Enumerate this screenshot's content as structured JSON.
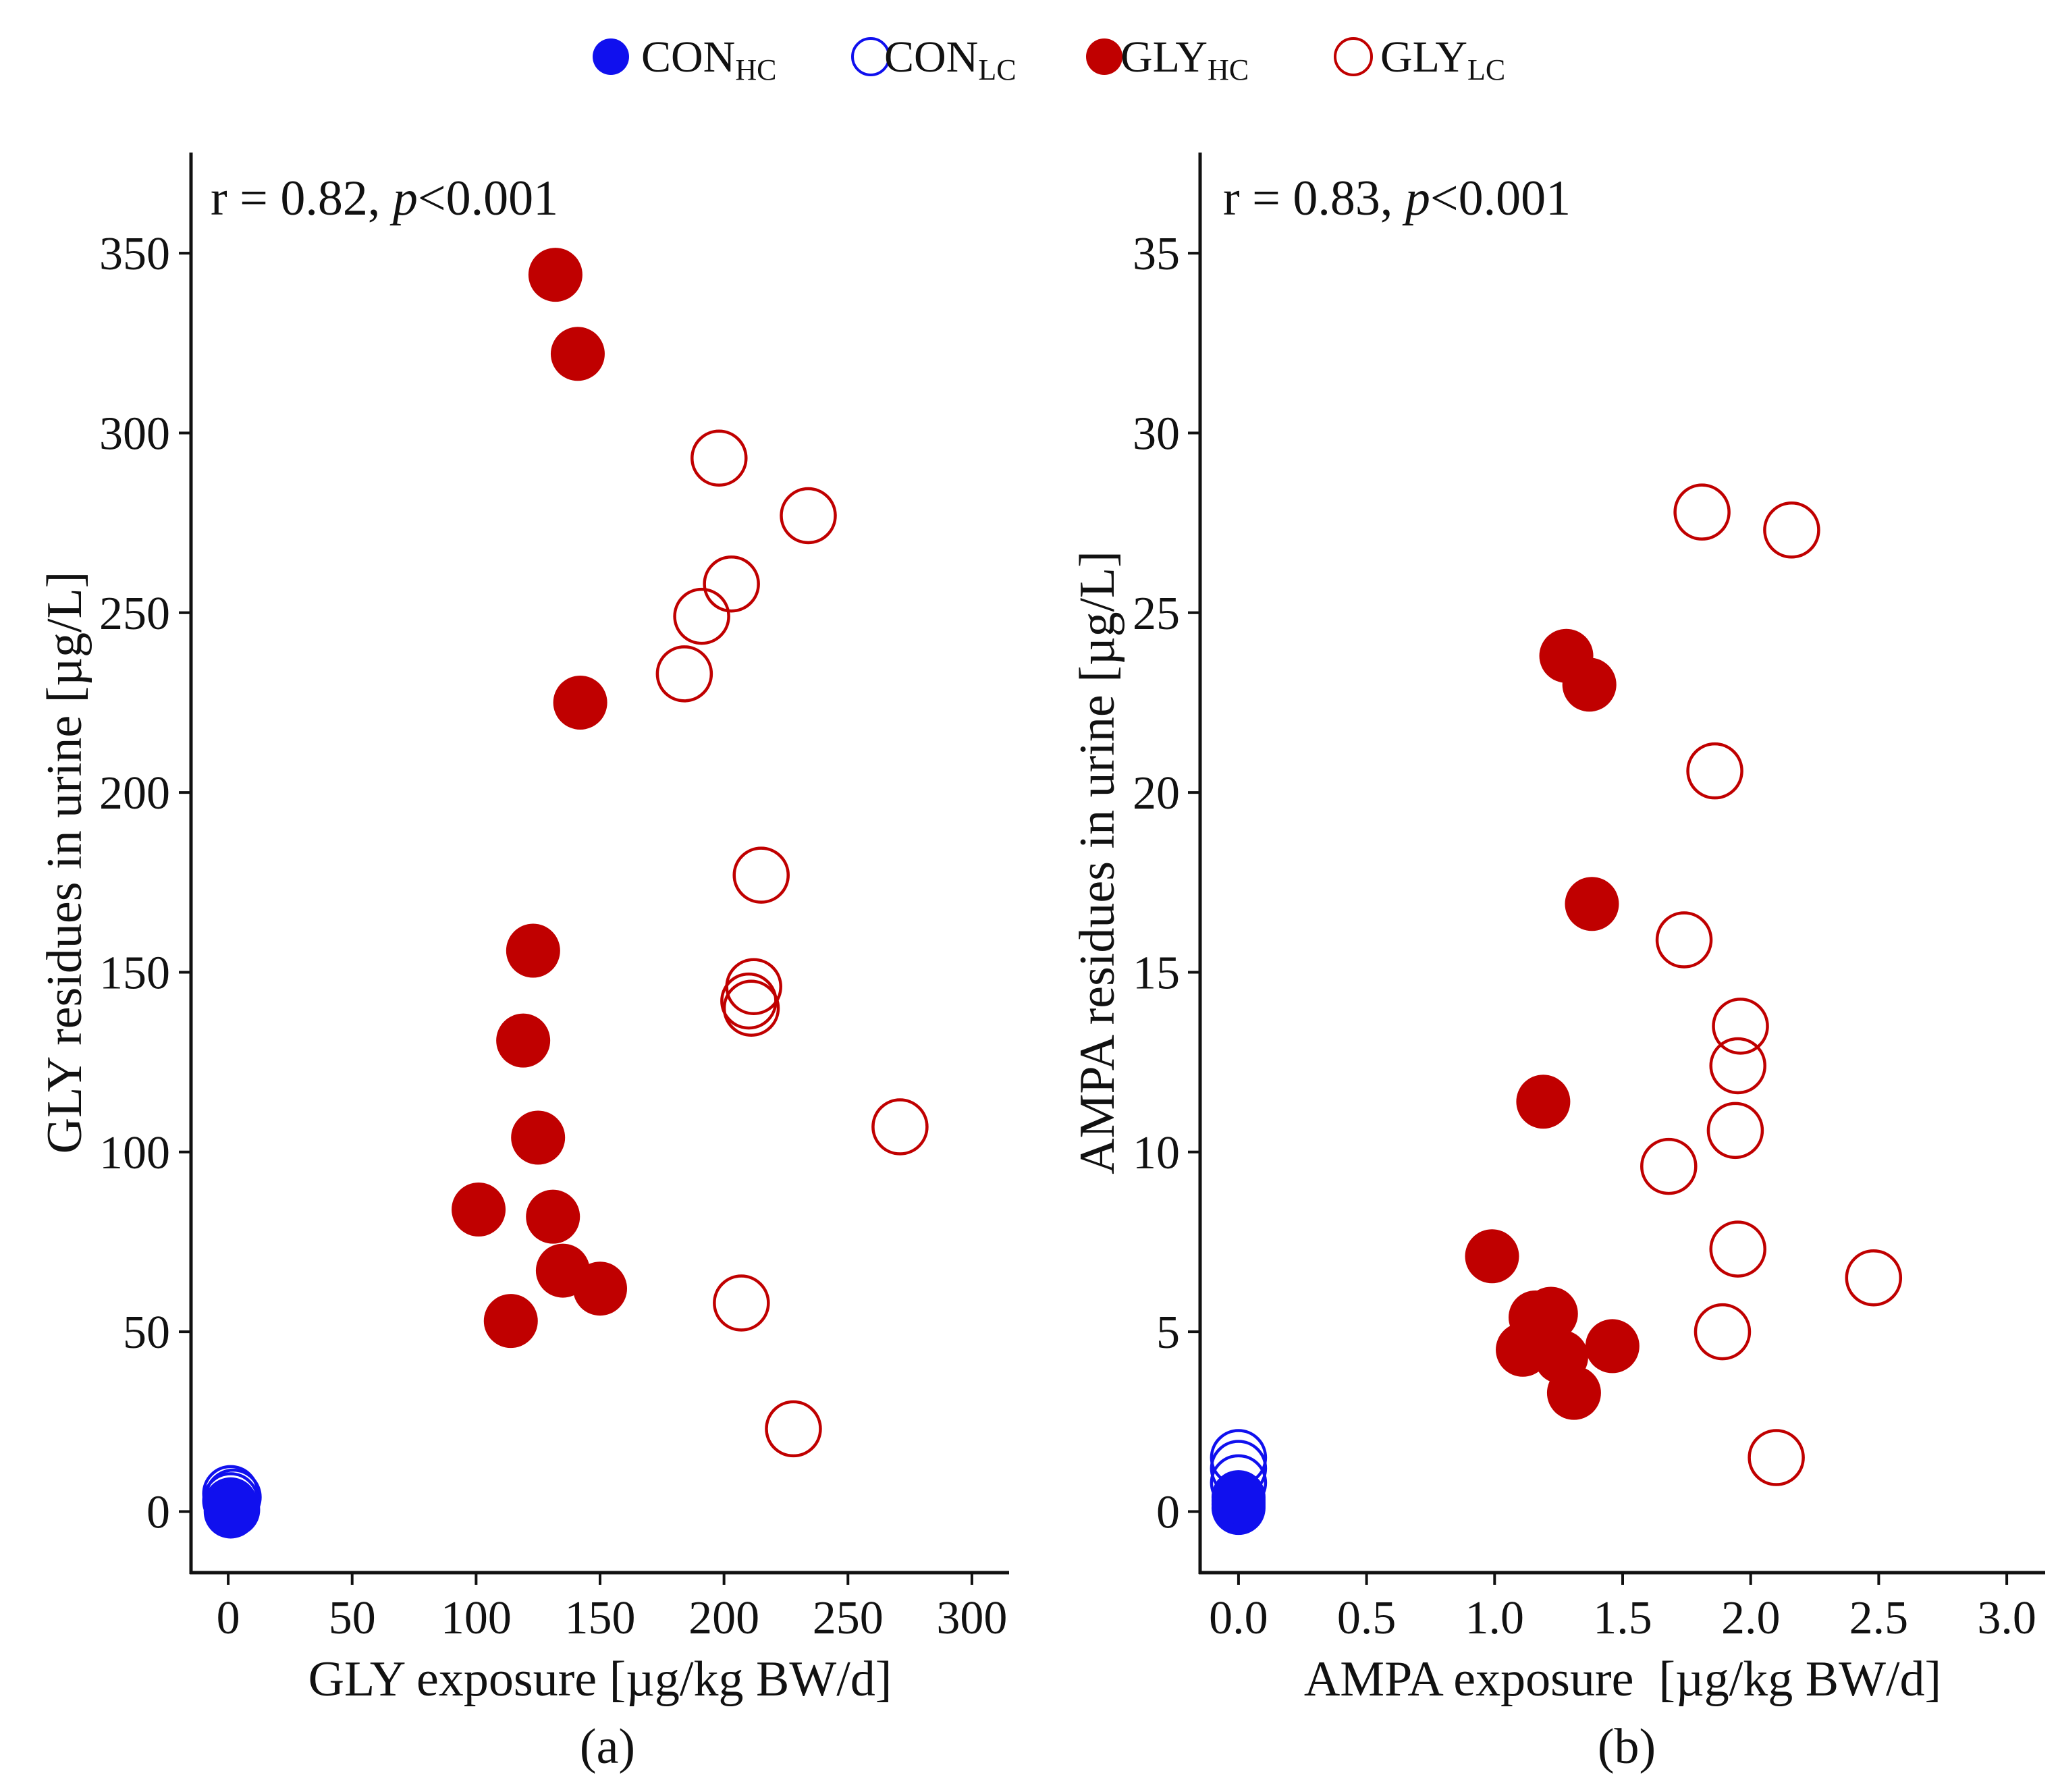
{
  "legend": [
    {
      "base": "CON",
      "sub": "HC",
      "color": "#1010ee",
      "filled": true
    },
    {
      "base": "CON",
      "sub": "LC",
      "color": "#1010ee",
      "filled": false
    },
    {
      "base": "GLY",
      "sub": "HC",
      "color": "#c00000",
      "filled": true
    },
    {
      "base": "GLY",
      "sub": "LC",
      "color": "#c00000",
      "filled": false
    }
  ],
  "chart_data": [
    {
      "type": "scatter",
      "panel_label": "(a)",
      "annotation": {
        "prefix": "r = 0.82, ",
        "p": "p",
        "suffix": "<0.001"
      },
      "xlabel": "GLY exposure [µg/kg BW/d]",
      "ylabel": "GLY residues in urine [µg/L]",
      "xlim": [
        -15,
        315
      ],
      "ylim": [
        -17,
        378
      ],
      "xticks": [
        0,
        50,
        100,
        150,
        200,
        250,
        300
      ],
      "xtick_labels": [
        "0",
        "50",
        "100",
        "150",
        "200",
        "250",
        "300"
      ],
      "yticks": [
        0,
        50,
        100,
        150,
        200,
        250,
        300,
        350
      ],
      "ytick_labels": [
        "0",
        "50",
        "100",
        "150",
        "200",
        "250",
        "300",
        "350"
      ],
      "grid": false,
      "series": [
        {
          "name": "CON",
          "sub": "HC",
          "color": "#1010ee",
          "filled": true,
          "points": [
            [
              1,
              0
            ],
            [
              1,
              1
            ],
            [
              1,
              2
            ],
            [
              2,
              0.5
            ]
          ]
        },
        {
          "name": "CON",
          "sub": "LC",
          "color": "#1010ee",
          "filled": false,
          "points": [
            [
              1,
              5
            ],
            [
              1,
              3
            ],
            [
              2,
              4
            ]
          ]
        },
        {
          "name": "GLY",
          "sub": "HC",
          "color": "#c00000",
          "filled": true,
          "points": [
            [
              132,
              344
            ],
            [
              141,
              322
            ],
            [
              142,
              225
            ],
            [
              123,
              156
            ],
            [
              119,
              131
            ],
            [
              125,
              104
            ],
            [
              101,
              84
            ],
            [
              131,
              82
            ],
            [
              135,
              67
            ],
            [
              150,
              62
            ],
            [
              114,
              53
            ]
          ]
        },
        {
          "name": "GLY",
          "sub": "LC",
          "color": "#c00000",
          "filled": false,
          "points": [
            [
              198,
              293
            ],
            [
              234,
              277
            ],
            [
              203,
              258
            ],
            [
              191,
              249
            ],
            [
              184,
              233
            ],
            [
              215,
              177
            ],
            [
              212,
              146
            ],
            [
              210,
              142
            ],
            [
              211,
              140
            ],
            [
              271,
              107
            ],
            [
              207,
              58
            ],
            [
              228,
              23
            ]
          ]
        }
      ]
    },
    {
      "type": "scatter",
      "panel_label": "(b)",
      "annotation": {
        "prefix": "r = 0.83, ",
        "p": "p",
        "suffix": "<0.001"
      },
      "xlabel": "AMPA exposure  [µg/kg BW/d]",
      "ylabel": "AMPA residues in urine [µg/L]",
      "xlim": [
        -0.15,
        3.15
      ],
      "ylim": [
        -1.7,
        37.8
      ],
      "xticks": [
        0,
        0.5,
        1.0,
        1.5,
        2.0,
        2.5,
        3.0
      ],
      "xtick_labels": [
        "0.0",
        "0.5",
        "1.0",
        "1.5",
        "2.0",
        "2.5",
        "3.0"
      ],
      "yticks": [
        0,
        5,
        10,
        15,
        20,
        25,
        30,
        35
      ],
      "ytick_labels": [
        "0",
        "5",
        "10",
        "15",
        "20",
        "25",
        "30",
        "35"
      ],
      "grid": false,
      "series": [
        {
          "name": "CON",
          "sub": "HC",
          "color": "#1010ee",
          "filled": true,
          "points": [
            [
              0,
              0.1
            ],
            [
              0,
              0.2
            ],
            [
              0,
              0.3
            ],
            [
              0,
              0.4
            ]
          ]
        },
        {
          "name": "CON",
          "sub": "LC",
          "color": "#1010ee",
          "filled": false,
          "points": [
            [
              0,
              1.5
            ],
            [
              0,
              1.2
            ],
            [
              0,
              0.8
            ]
          ]
        },
        {
          "name": "GLY",
          "sub": "HC",
          "color": "#c00000",
          "filled": true,
          "points": [
            [
              1.28,
              23.8
            ],
            [
              1.37,
              23.0
            ],
            [
              1.38,
              16.9
            ],
            [
              1.19,
              11.4
            ],
            [
              0.99,
              7.1
            ],
            [
              1.16,
              5.4
            ],
            [
              1.22,
              5.5
            ],
            [
              1.11,
              4.5
            ],
            [
              1.26,
              4.3
            ],
            [
              1.46,
              4.6
            ],
            [
              1.31,
              3.3
            ]
          ]
        },
        {
          "name": "GLY",
          "sub": "LC",
          "color": "#c00000",
          "filled": false,
          "points": [
            [
              1.81,
              27.8
            ],
            [
              2.16,
              27.3
            ],
            [
              1.86,
              20.6
            ],
            [
              1.74,
              15.9
            ],
            [
              1.96,
              13.5
            ],
            [
              1.95,
              12.4
            ],
            [
              1.94,
              10.6
            ],
            [
              1.68,
              9.6
            ],
            [
              1.95,
              7.3
            ],
            [
              2.48,
              6.5
            ],
            [
              1.89,
              5.0
            ],
            [
              2.1,
              1.5
            ]
          ]
        }
      ]
    }
  ]
}
